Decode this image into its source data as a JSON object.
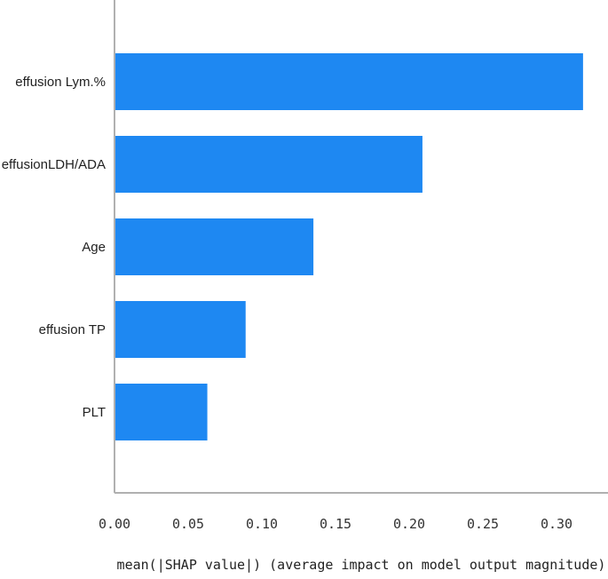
{
  "chart_data": {
    "type": "bar",
    "orientation": "horizontal",
    "categories": [
      "effusion Lym.%",
      "effusionLDH/ADA",
      "Age",
      "effusion TP",
      "PLT"
    ],
    "values": [
      0.318,
      0.209,
      0.135,
      0.089,
      0.063
    ],
    "title": "",
    "xlabel": "mean(|SHAP value|) (average impact on model output magnitude)",
    "ylabel": "",
    "xlim": [
      0,
      0.335
    ],
    "xticks": [
      0.0,
      0.05,
      0.1,
      0.15,
      0.2,
      0.25,
      0.3
    ],
    "xtick_labels": [
      "0.00",
      "0.05",
      "0.10",
      "0.15",
      "0.20",
      "0.25",
      "0.30"
    ],
    "grid": false,
    "bar_color": "#1e88f2",
    "axis_color": "#b0b0b0"
  }
}
